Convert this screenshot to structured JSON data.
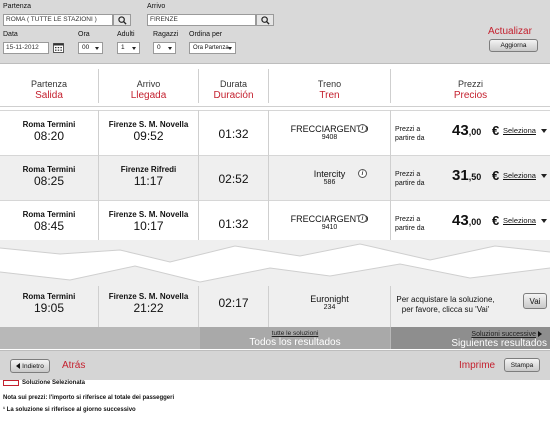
{
  "search": {
    "departure_label": "Partenza",
    "departure_value": "ROMA ( TUTTE LE STAZIONI )",
    "arrival_label": "Arrivo",
    "arrival_value": "FIRENZE",
    "date_label": "Data",
    "date_value": "15-11-2012",
    "time_label": "Ora",
    "time_value": "00",
    "adults_label": "Adulti",
    "adults_value": "1",
    "children_label": "Ragazzi",
    "children_value": "0",
    "order_label": "Ordina per",
    "order_value": "Ora Partenza",
    "update_annotation": "Actualizar",
    "update_button": "Aggiorna"
  },
  "columns": [
    {
      "it": "Partenza",
      "es": "Salida"
    },
    {
      "it": "Arrivo",
      "es": "Llegada"
    },
    {
      "it": "Durata",
      "es": "Duración"
    },
    {
      "it": "Treno",
      "es": "Tren"
    },
    {
      "it": "Prezzi",
      "es": "Precios"
    }
  ],
  "rows": [
    {
      "from": "Roma Termini",
      "dep": "08:20",
      "to": "Firenze S. M. Novella",
      "arr": "09:52",
      "duration": "01:32",
      "train": "FRECCIARGENTO",
      "number": "9408",
      "price_from": "Prezzi a partire da",
      "price": "43",
      "cents": ",00",
      "currency": "€",
      "select": "Seleziona"
    },
    {
      "from": "Roma Termini",
      "dep": "08:25",
      "to": "Firenze Rifredi",
      "arr": "11:17",
      "duration": "02:52",
      "train": "Intercity",
      "number": "586",
      "price_from": "Prezzi a partire da",
      "price": "31",
      "cents": ",50",
      "currency": "€",
      "select": "Seleziona"
    },
    {
      "from": "Roma Termini",
      "dep": "08:45",
      "to": "Firenze S. M. Novella",
      "arr": "10:17",
      "duration": "01:32",
      "train": "FRECCIARGENTO",
      "number": "9410",
      "price_from": "Prezzi a partire da",
      "price": "43",
      "cents": ",00",
      "currency": "€",
      "select": "Seleziona"
    },
    {
      "from": "Roma Termini",
      "dep": "19:05",
      "to": "Firenze S. M. Novella",
      "arr": "21:22",
      "duration": "02:17",
      "train": "Euronight",
      "number": "234",
      "note": "Per acquistare la soluzione, per favore, clicca su 'Vai'",
      "go": "Vai"
    }
  ],
  "footer": {
    "all_results_it": "tutte le soluzioni",
    "all_results_es": "Todos los resultados",
    "next_results_it": "Soluzioni successive",
    "next_results_es": "Siguientes resultados"
  },
  "nav": {
    "back_button": "Indietro",
    "back_annotation": "Atrás",
    "print_annotation": "Imprime",
    "print_button": "Stampa"
  },
  "legend": {
    "selected": "Soluzione Selezionata",
    "note1": "Nota sui prezzi: l'importo si riferisce al totale dei passeggeri",
    "note2": "¹ La soluzione si riferisce al giorno successivo"
  },
  "colors": {
    "accent": "#c4202e"
  }
}
